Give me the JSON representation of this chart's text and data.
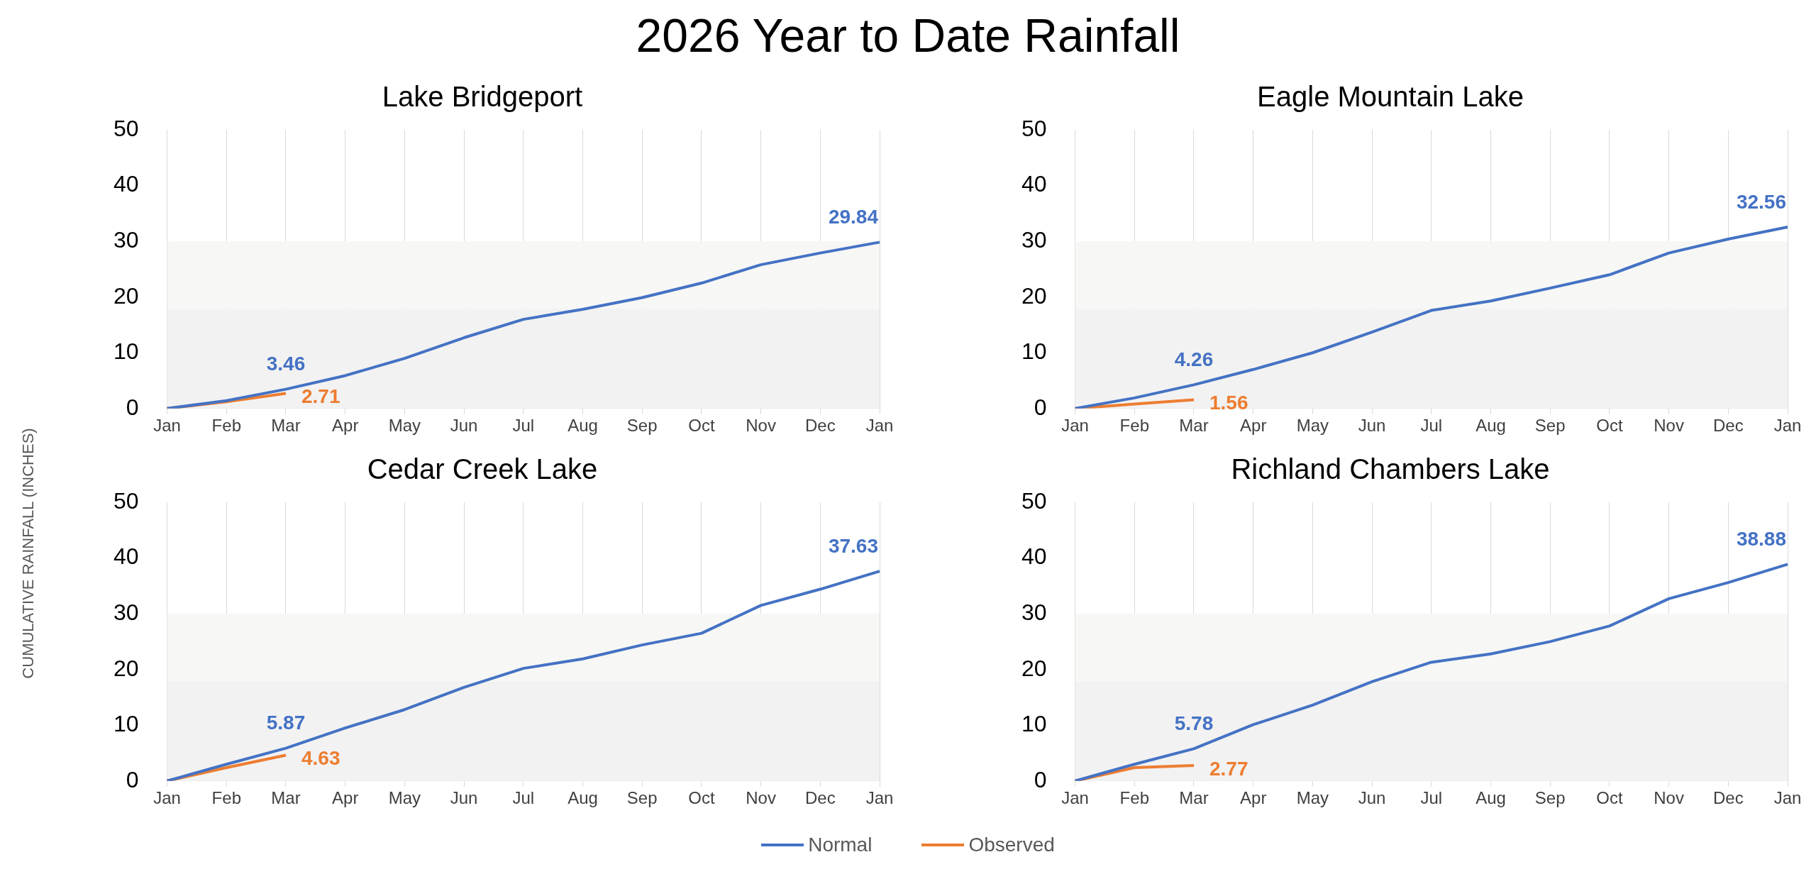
{
  "chart_data": [
    {
      "type": "other",
      "title": "2026 Year to Date Rainfall",
      "ylabel": "CUMULATIVE RAINFALL (INCHES)"
    },
    {
      "type": "line",
      "title": "Lake Bridgeport",
      "categories": [
        "Jan",
        "Feb",
        "Mar",
        "Apr",
        "May",
        "Jun",
        "Jul",
        "Aug",
        "Sep",
        "Oct",
        "Nov",
        "Dec",
        "Jan"
      ],
      "ylim": [
        0,
        50
      ],
      "yticks": [
        0,
        10,
        20,
        30,
        40,
        50
      ],
      "grid": "x",
      "legend": "bottom",
      "marker": "none",
      "line_style": "solid",
      "bands": [
        {
          "axis": "y",
          "from": 0,
          "to": 18,
          "color": "#f2f2f2"
        },
        {
          "axis": "y",
          "from": 18,
          "to": 30,
          "color": "#f7f7f5"
        }
      ],
      "series": [
        {
          "name": "Normal",
          "color": "#4472c4",
          "values": [
            0,
            1.4,
            3.46,
            5.9,
            9.0,
            12.7,
            16.0,
            17.8,
            19.9,
            22.5,
            25.8,
            27.9,
            29.84
          ],
          "value_labels": [
            null,
            null,
            "3.46",
            null,
            null,
            null,
            null,
            null,
            null,
            null,
            null,
            null,
            "29.84"
          ]
        },
        {
          "name": "Observed",
          "color": "#ed7d31",
          "values": [
            0,
            1.2,
            2.71,
            null,
            null,
            null,
            null,
            null,
            null,
            null,
            null,
            null,
            null
          ],
          "value_labels": [
            null,
            null,
            "2.71",
            null,
            null,
            null,
            null,
            null,
            null,
            null,
            null,
            null,
            null
          ]
        }
      ]
    },
    {
      "type": "line",
      "title": "Eagle Mountain Lake",
      "categories": [
        "Jan",
        "Feb",
        "Mar",
        "Apr",
        "May",
        "Jun",
        "Jul",
        "Aug",
        "Sep",
        "Oct",
        "Nov",
        "Dec",
        "Jan"
      ],
      "ylim": [
        0,
        50
      ],
      "yticks": [
        0,
        10,
        20,
        30,
        40,
        50
      ],
      "grid": "x",
      "marker": "none",
      "line_style": "solid",
      "bands": [
        {
          "axis": "y",
          "from": 0,
          "to": 18,
          "color": "#f2f2f2"
        },
        {
          "axis": "y",
          "from": 18,
          "to": 30,
          "color": "#f7f7f5"
        }
      ],
      "series": [
        {
          "name": "Normal",
          "color": "#4472c4",
          "values": [
            0,
            1.9,
            4.26,
            7.0,
            10.0,
            13.7,
            17.6,
            19.3,
            21.6,
            24.0,
            27.9,
            30.4,
            32.56
          ],
          "value_labels": [
            null,
            null,
            "4.26",
            null,
            null,
            null,
            null,
            null,
            null,
            null,
            null,
            null,
            "32.56"
          ]
        },
        {
          "name": "Observed",
          "color": "#ed7d31",
          "values": [
            0,
            0.8,
            1.56,
            null,
            null,
            null,
            null,
            null,
            null,
            null,
            null,
            null,
            null
          ],
          "value_labels": [
            null,
            null,
            "1.56",
            null,
            null,
            null,
            null,
            null,
            null,
            null,
            null,
            null,
            null
          ]
        }
      ]
    },
    {
      "type": "line",
      "title": "Cedar Creek Lake",
      "categories": [
        "Jan",
        "Feb",
        "Mar",
        "Apr",
        "May",
        "Jun",
        "Jul",
        "Aug",
        "Sep",
        "Oct",
        "Nov",
        "Dec",
        "Jan"
      ],
      "ylim": [
        0,
        50
      ],
      "yticks": [
        0,
        10,
        20,
        30,
        40,
        50
      ],
      "grid": "x",
      "marker": "none",
      "line_style": "solid",
      "bands": [
        {
          "axis": "y",
          "from": 0,
          "to": 18,
          "color": "#f2f2f2"
        },
        {
          "axis": "y",
          "from": 18,
          "to": 30,
          "color": "#f7f7f5"
        }
      ],
      "series": [
        {
          "name": "Normal",
          "color": "#4472c4",
          "values": [
            0,
            3.0,
            5.87,
            9.5,
            12.8,
            16.8,
            20.2,
            21.9,
            24.4,
            26.5,
            31.5,
            34.4,
            37.63
          ],
          "value_labels": [
            null,
            null,
            "5.87",
            null,
            null,
            null,
            null,
            null,
            null,
            null,
            null,
            null,
            "37.63"
          ]
        },
        {
          "name": "Observed",
          "color": "#ed7d31",
          "values": [
            0,
            2.4,
            4.63,
            null,
            null,
            null,
            null,
            null,
            null,
            null,
            null,
            null,
            null
          ],
          "value_labels": [
            null,
            null,
            "4.63",
            null,
            null,
            null,
            null,
            null,
            null,
            null,
            null,
            null,
            null
          ]
        }
      ]
    },
    {
      "type": "line",
      "title": "Richland Chambers Lake",
      "categories": [
        "Jan",
        "Feb",
        "Mar",
        "Apr",
        "May",
        "Jun",
        "Jul",
        "Aug",
        "Sep",
        "Oct",
        "Nov",
        "Dec",
        "Jan"
      ],
      "ylim": [
        0,
        50
      ],
      "yticks": [
        0,
        10,
        20,
        30,
        40,
        50
      ],
      "grid": "x",
      "marker": "none",
      "line_style": "solid",
      "bands": [
        {
          "axis": "y",
          "from": 0,
          "to": 18,
          "color": "#f2f2f2"
        },
        {
          "axis": "y",
          "from": 18,
          "to": 30,
          "color": "#f7f7f5"
        }
      ],
      "series": [
        {
          "name": "Normal",
          "color": "#4472c4",
          "values": [
            0,
            3.0,
            5.78,
            10.1,
            13.6,
            17.8,
            21.3,
            22.8,
            25.0,
            27.8,
            32.7,
            35.6,
            38.88
          ],
          "value_labels": [
            null,
            null,
            "5.78",
            null,
            null,
            null,
            null,
            null,
            null,
            null,
            null,
            null,
            "38.88"
          ]
        },
        {
          "name": "Observed",
          "color": "#ed7d31",
          "values": [
            0,
            2.4,
            2.77,
            null,
            null,
            null,
            null,
            null,
            null,
            null,
            null,
            null,
            null
          ],
          "value_labels": [
            null,
            null,
            "2.77",
            null,
            null,
            null,
            null,
            null,
            null,
            null,
            null,
            null,
            null
          ]
        }
      ]
    }
  ]
}
